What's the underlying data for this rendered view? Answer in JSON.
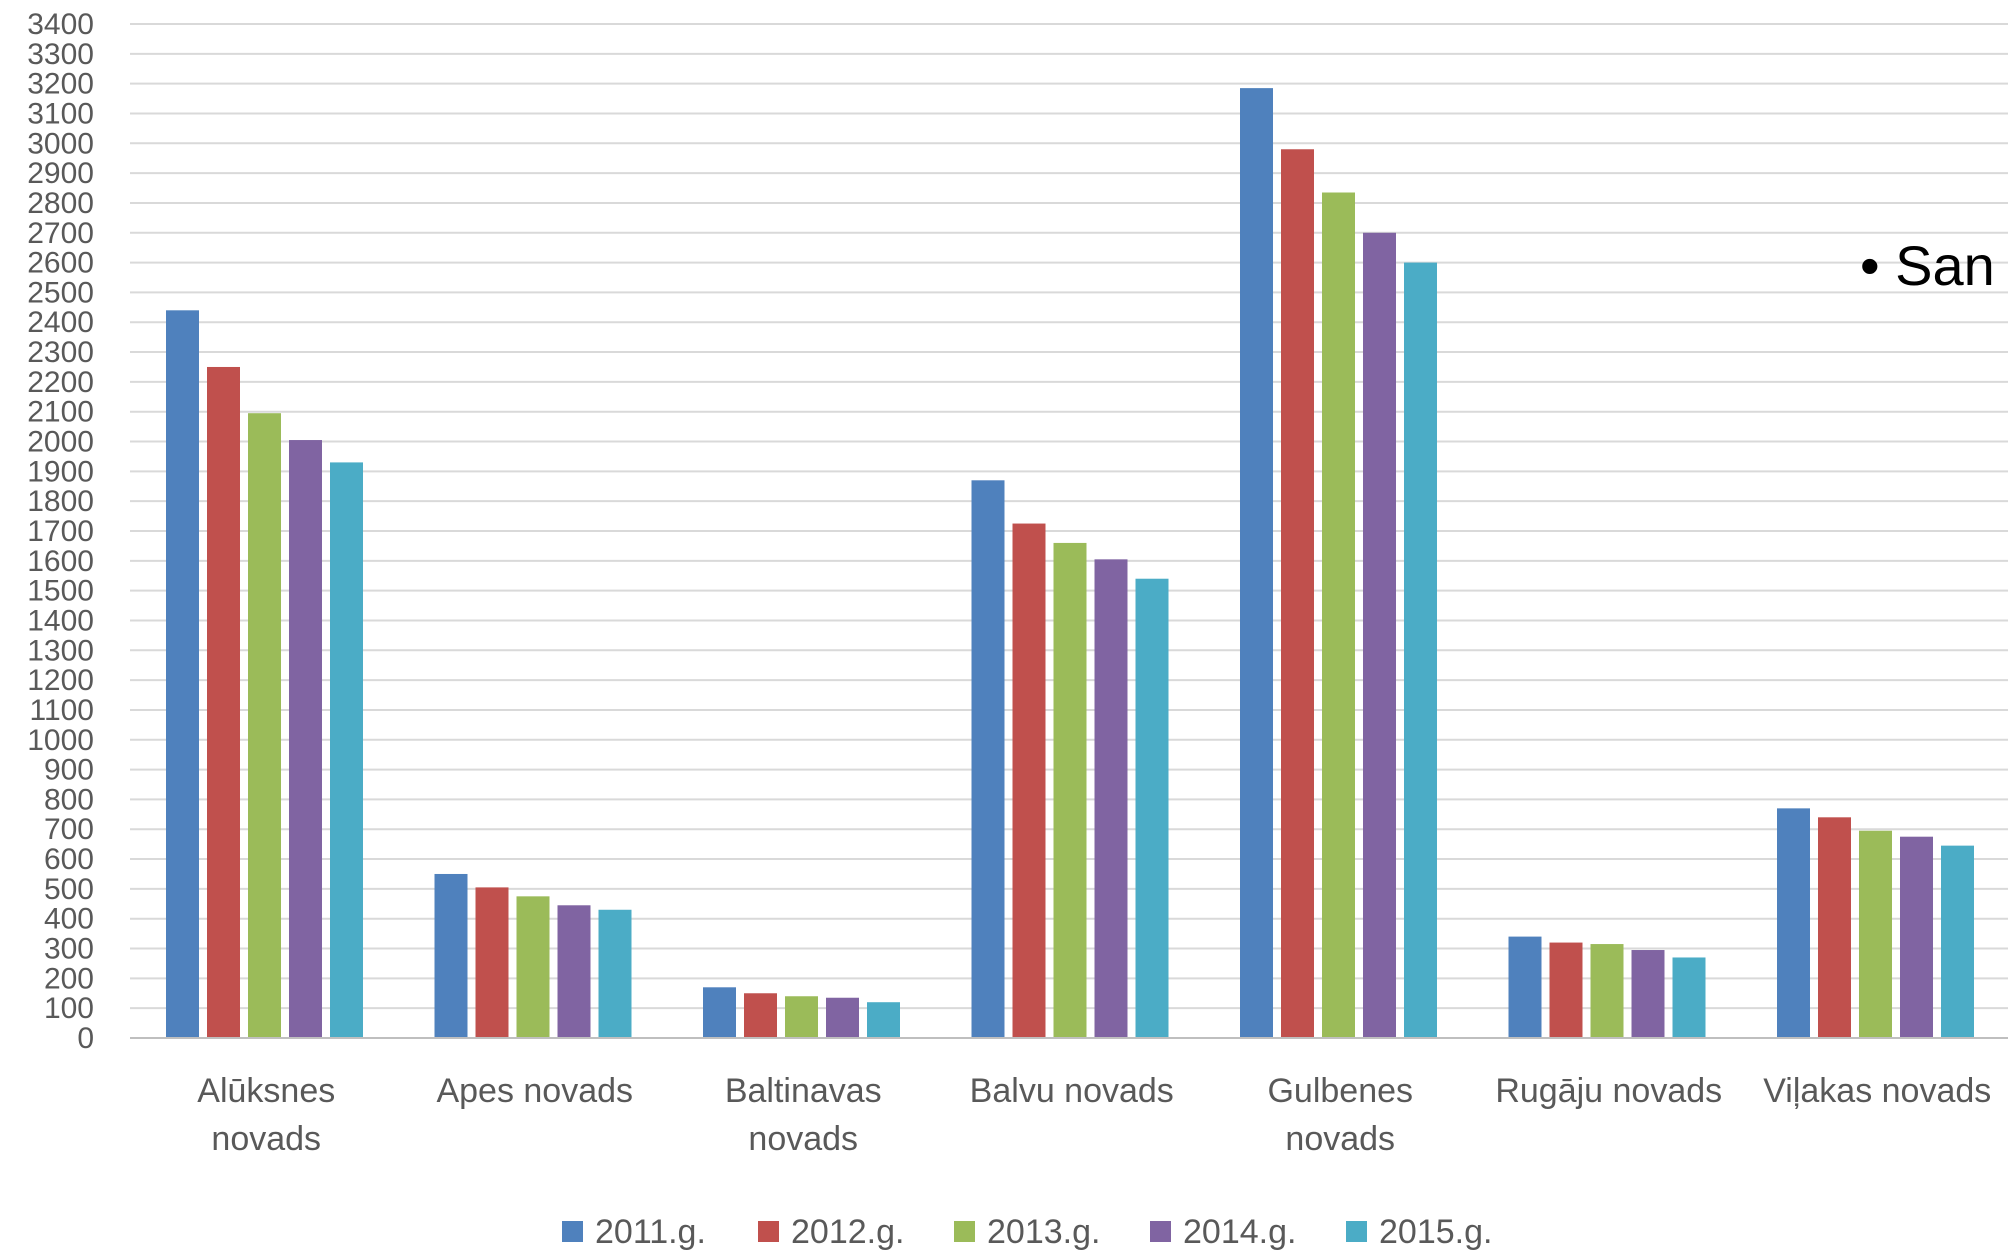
{
  "chart_data": {
    "type": "bar",
    "categories": [
      [
        "Alūksnes",
        "novads"
      ],
      [
        "Apes novads"
      ],
      [
        "Baltinavas",
        "novads"
      ],
      [
        "Balvu novads"
      ],
      [
        "Gulbenes",
        "novads"
      ],
      [
        "Rugāju novads"
      ],
      [
        "Viļakas novads"
      ]
    ],
    "series": [
      {
        "name": "2011.g.",
        "color": "#4F81BD",
        "values": [
          2440,
          550,
          170,
          1870,
          3185,
          340,
          770
        ]
      },
      {
        "name": "2012.g.",
        "color": "#C0504D",
        "values": [
          2250,
          505,
          150,
          1725,
          2980,
          320,
          740
        ]
      },
      {
        "name": "2013.g.",
        "color": "#9BBB59",
        "values": [
          2095,
          475,
          140,
          1660,
          2835,
          315,
          695
        ]
      },
      {
        "name": "2014.g.",
        "color": "#8064A2",
        "values": [
          2005,
          445,
          135,
          1605,
          2700,
          295,
          675
        ]
      },
      {
        "name": "2015.g.",
        "color": "#4BACC6",
        "values": [
          1930,
          430,
          120,
          1540,
          2600,
          270,
          645
        ]
      }
    ],
    "ylim": [
      0,
      3400
    ],
    "ytick_step": 100,
    "grid": true,
    "legend_position": "bottom"
  },
  "overlay_text": "• San"
}
